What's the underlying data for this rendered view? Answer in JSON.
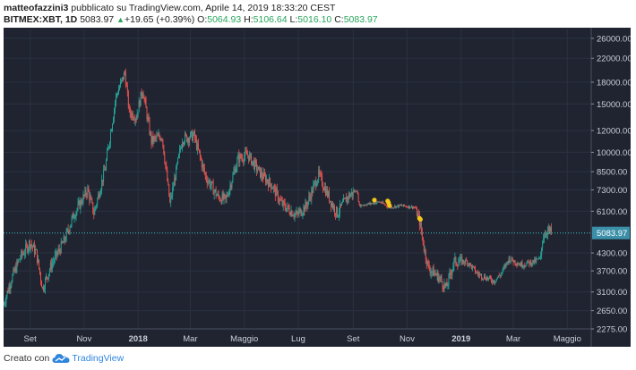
{
  "header": {
    "author": "matteofazzini3",
    "published_text": "pubblicato su TradingView.com, Aprile 14, 2019 18:33:20 CEST",
    "symbol": "BITMEX:XBT, 1D",
    "last": "5083.97",
    "change": "+19.65 (+0.39%)",
    "o_label": "O:",
    "o_value": "5064.93",
    "h_label": "H:",
    "h_value": "5106.64",
    "l_label": "L:",
    "l_value": "5016.10",
    "c_label": "C:",
    "c_value": "5083.97"
  },
  "colors": {
    "background": "#1f2430",
    "up": "#26a69a",
    "down": "#ef5350",
    "last_price_line": "#3fc7c7",
    "marker": "#f5c518"
  },
  "chart_data": {
    "type": "candlestick",
    "scale": "log",
    "ylim": [
      2275,
      28000
    ],
    "y_ticks": [
      26000,
      22000,
      18000,
      15000,
      12000,
      10000,
      8500,
      7300,
      6100,
      5083.97,
      4300,
      3700,
      3100,
      2650,
      2275
    ],
    "y_tick_labels": [
      "26000.00",
      "22000.00",
      "18000.00",
      "15000.00",
      "12000.00",
      "10000.00",
      "8500.00",
      "7300.00",
      "6100.00",
      "5083.97",
      "4300.00",
      "3700.00",
      "3100.00",
      "2650.00",
      "2275.00"
    ],
    "x_labels": [
      "Set",
      "Nov",
      "2018",
      "Mar",
      "Maggio",
      "Lug",
      "Set",
      "Nov",
      "2019",
      "Mar",
      "Maggio"
    ],
    "x_label_dates": [
      "2017-09-01",
      "2017-11-01",
      "2018-01-01",
      "2018-03-01",
      "2018-05-01",
      "2018-07-01",
      "2018-09-01",
      "2018-11-01",
      "2019-01-01",
      "2019-03-01",
      "2019-05-01"
    ],
    "x_range": [
      "2017-08-02",
      "2019-05-28"
    ],
    "last_price": 5083.97,
    "last_price_label": "5083.97",
    "price_path": [
      [
        "2017-08-02",
        2800
      ],
      [
        "2017-08-10",
        3400
      ],
      [
        "2017-08-20",
        4100
      ],
      [
        "2017-09-01",
        4700
      ],
      [
        "2017-09-08",
        4300
      ],
      [
        "2017-09-15",
        3200
      ],
      [
        "2017-09-25",
        3900
      ],
      [
        "2017-10-10",
        4800
      ],
      [
        "2017-10-20",
        5900
      ],
      [
        "2017-11-05",
        7300
      ],
      [
        "2017-11-12",
        6000
      ],
      [
        "2017-11-25",
        8800
      ],
      [
        "2017-12-07",
        16000
      ],
      [
        "2017-12-17",
        19500
      ],
      [
        "2017-12-22",
        14000
      ],
      [
        "2017-12-30",
        13500
      ],
      [
        "2018-01-06",
        17000
      ],
      [
        "2018-01-16",
        11000
      ],
      [
        "2018-01-28",
        11500
      ],
      [
        "2018-02-06",
        6500
      ],
      [
        "2018-02-20",
        11200
      ],
      [
        "2018-03-05",
        11500
      ],
      [
        "2018-03-18",
        8200
      ],
      [
        "2018-04-01",
        6900
      ],
      [
        "2018-04-10",
        6700
      ],
      [
        "2018-04-24",
        9500
      ],
      [
        "2018-05-05",
        9800
      ],
      [
        "2018-05-20",
        8300
      ],
      [
        "2018-06-01",
        7600
      ],
      [
        "2018-06-12",
        6500
      ],
      [
        "2018-06-29",
        5900
      ],
      [
        "2018-07-10",
        6400
      ],
      [
        "2018-07-24",
        8300
      ],
      [
        "2018-08-10",
        6300
      ],
      [
        "2018-08-14",
        6000
      ],
      [
        "2018-08-26",
        6900
      ],
      [
        "2018-09-05",
        7300
      ],
      [
        "2018-09-08",
        6400
      ],
      [
        "2018-09-20",
        6500
      ],
      [
        "2018-10-01",
        6600
      ],
      [
        "2018-10-12",
        6300
      ],
      [
        "2018-10-25",
        6400
      ],
      [
        "2018-11-10",
        6300
      ],
      [
        "2018-11-15",
        5600
      ],
      [
        "2018-11-20",
        4500
      ],
      [
        "2018-11-25",
        3800
      ],
      [
        "2018-12-07",
        3500
      ],
      [
        "2018-12-15",
        3200
      ],
      [
        "2018-12-24",
        4000
      ],
      [
        "2019-01-08",
        4000
      ],
      [
        "2019-01-20",
        3600
      ],
      [
        "2019-02-07",
        3400
      ],
      [
        "2019-02-15",
        3600
      ],
      [
        "2019-02-24",
        4100
      ],
      [
        "2019-03-10",
        3900
      ],
      [
        "2019-03-25",
        4000
      ],
      [
        "2019-04-01",
        4100
      ],
      [
        "2019-04-03",
        4900
      ],
      [
        "2019-04-08",
        5200
      ],
      [
        "2019-04-14",
        5084
      ]
    ],
    "markers": [
      {
        "date": "2018-09-25",
        "price": 6700
      },
      {
        "date": "2018-10-10",
        "price": 6650
      },
      {
        "date": "2018-10-11",
        "price": 6550
      },
      {
        "date": "2018-10-12",
        "price": 6400
      },
      {
        "date": "2018-11-15",
        "price": 5750
      },
      {
        "date": "2018-11-16",
        "price": 5700
      }
    ]
  },
  "footer": {
    "created_with": "Creato con",
    "brand": "TradingView",
    "logo_icon": "tradingview-cloud-icon"
  }
}
